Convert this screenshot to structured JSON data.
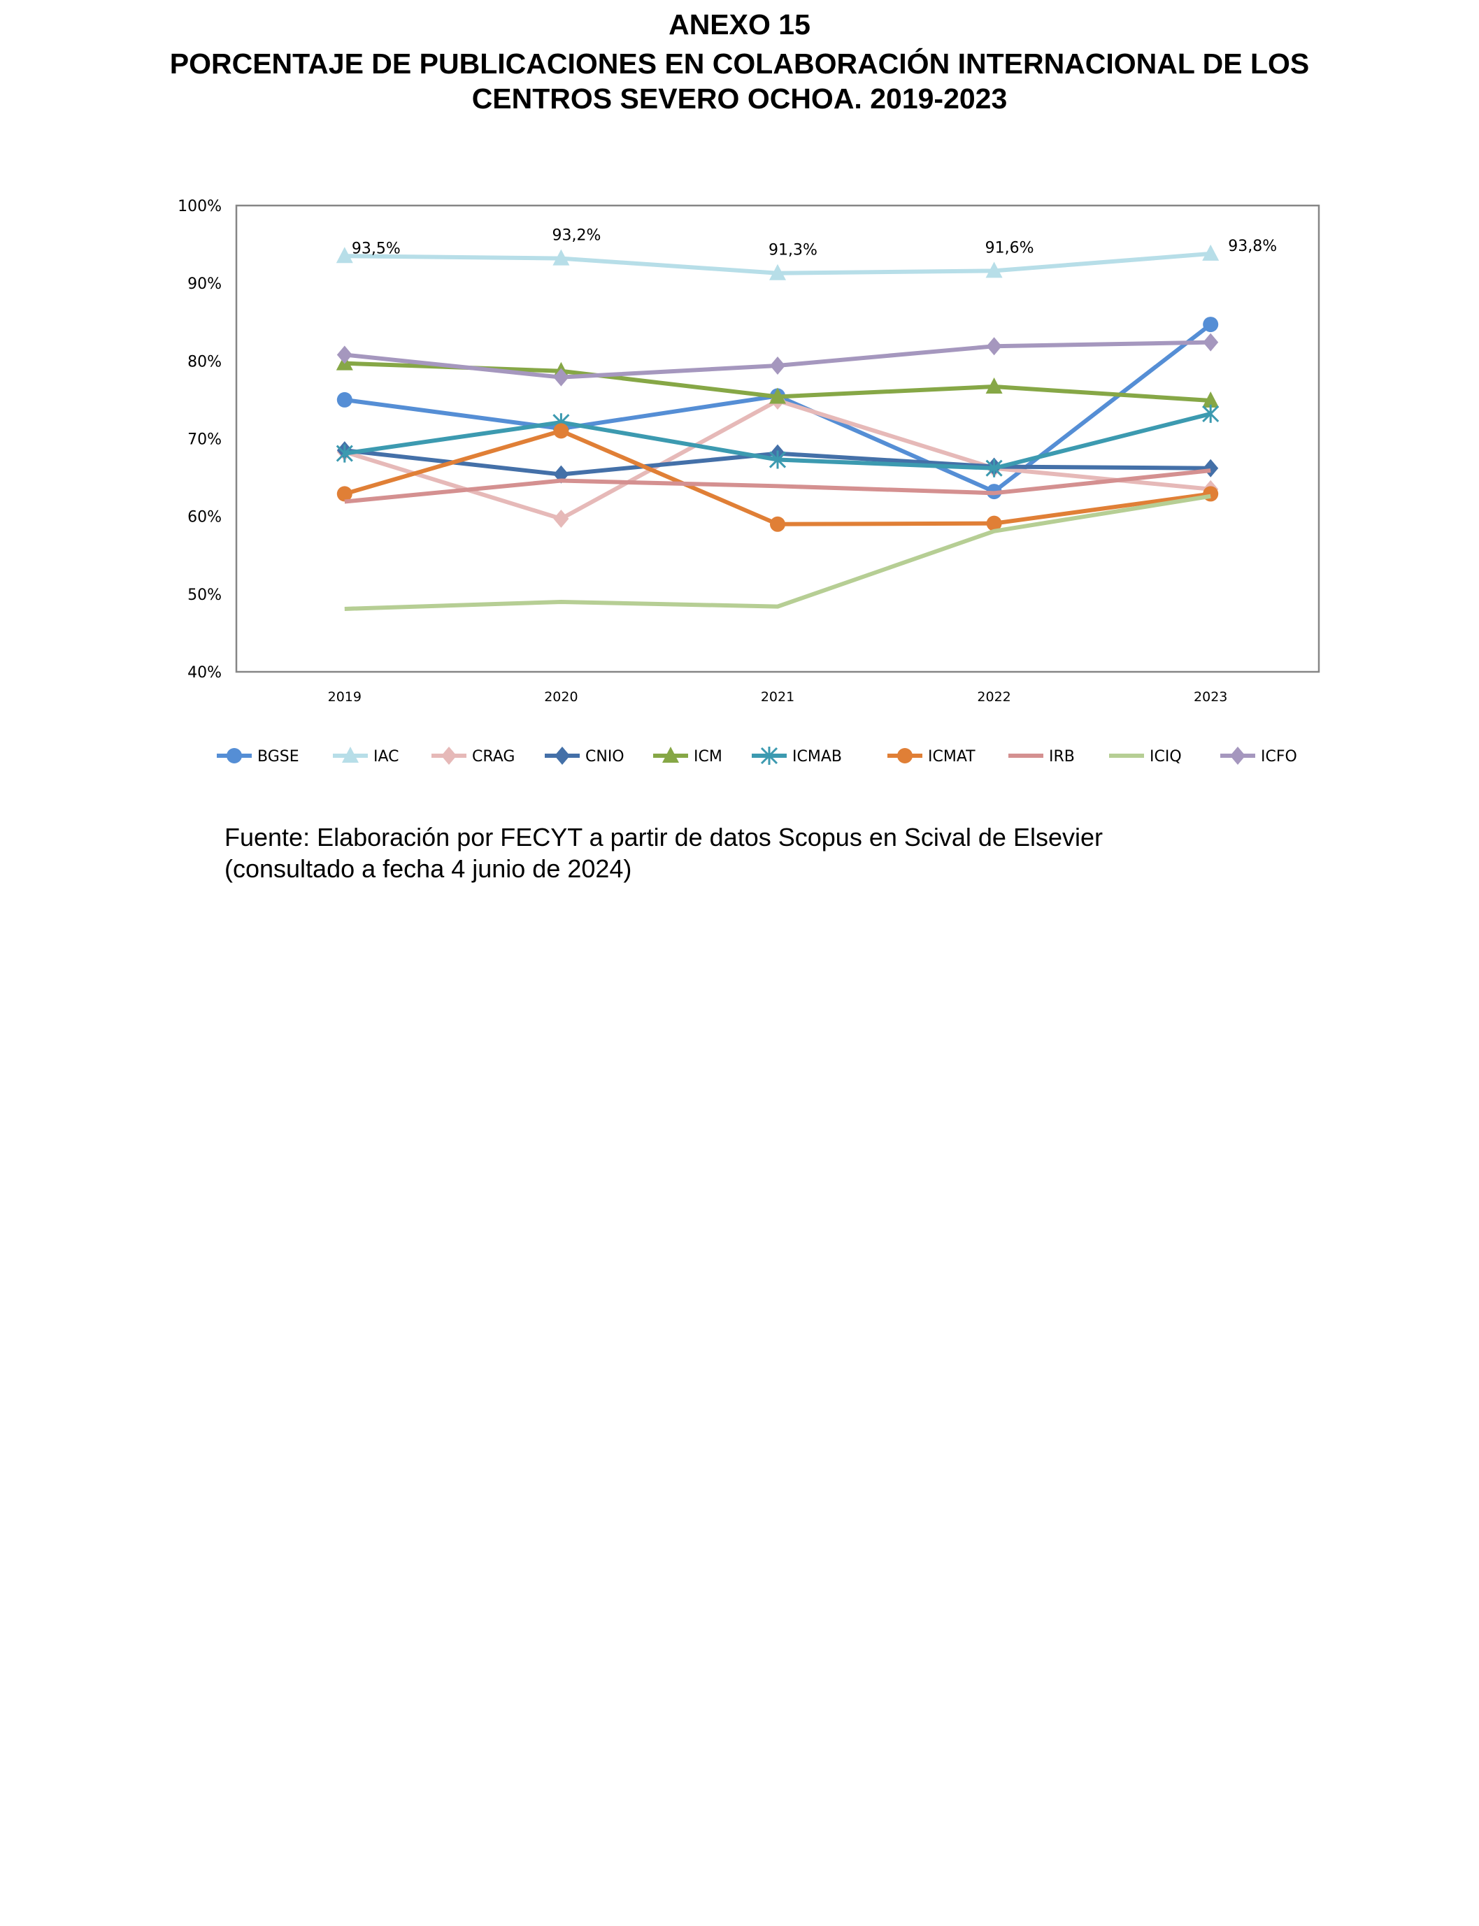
{
  "title": {
    "line1": "ANEXO 15",
    "line2": "PORCENTAJE DE PUBLICACIONES EN COLABORACIÓN INTERNACIONAL DE LOS",
    "line3": "CENTROS SEVERO OCHOA. 2019-2023"
  },
  "chart_data": {
    "type": "line",
    "categories": [
      "2019",
      "2020",
      "2021",
      "2022",
      "2023"
    ],
    "ylim": [
      40,
      100
    ],
    "yticks": [
      "40%",
      "50%",
      "60%",
      "70%",
      "80%",
      "90%",
      "100%"
    ],
    "grid": false,
    "legend": "bottom",
    "series": [
      {
        "name": "BGSE",
        "color": "#558ED5",
        "marker": "circle",
        "values": [
          75.0,
          71.3,
          75.5,
          63.2,
          84.7
        ]
      },
      {
        "name": "IAC",
        "color": "#B7DEE8",
        "marker": "triangle",
        "values": [
          93.5,
          93.2,
          91.3,
          91.6,
          93.8
        ],
        "labels": [
          "93,5%",
          "93,2%",
          "91,3%",
          "91,6%",
          "93,8%"
        ]
      },
      {
        "name": "CRAG",
        "color": "#E6B9B8",
        "marker": "diamond",
        "values": [
          68.3,
          59.7,
          74.9,
          66.2,
          63.5
        ]
      },
      {
        "name": "CNIO",
        "color": "#4470A8",
        "marker": "diamond",
        "values": [
          68.5,
          65.4,
          68.1,
          66.4,
          66.2
        ]
      },
      {
        "name": "ICM",
        "color": "#86A746",
        "marker": "triangle",
        "values": [
          79.7,
          78.7,
          75.4,
          76.7,
          74.9
        ]
      },
      {
        "name": "ICMAB",
        "color": "#3C9AB0",
        "marker": "asterisk",
        "values": [
          68.1,
          72.1,
          67.3,
          66.2,
          73.2
        ]
      },
      {
        "name": "ICMAT",
        "color": "#E07F36",
        "marker": "circle",
        "values": [
          62.9,
          71.0,
          59.0,
          59.1,
          62.9
        ]
      },
      {
        "name": "IRB",
        "color": "#D49090",
        "marker": "none",
        "values": [
          61.9,
          64.6,
          63.9,
          63.0,
          65.9
        ]
      },
      {
        "name": "ICIQ",
        "color": "#B6CE94",
        "marker": "none",
        "values": [
          48.1,
          49.0,
          48.4,
          58.1,
          62.6
        ]
      },
      {
        "name": "ICFO",
        "color": "#A597BE",
        "marker": "diamond",
        "values": [
          80.8,
          77.9,
          79.4,
          81.9,
          82.4
        ]
      }
    ]
  },
  "source": {
    "line1": "Fuente: Elaboración por FECYT a partir de datos Scopus en Scival de Elsevier",
    "line2": "(consultado a fecha 4 junio de 2024)"
  }
}
